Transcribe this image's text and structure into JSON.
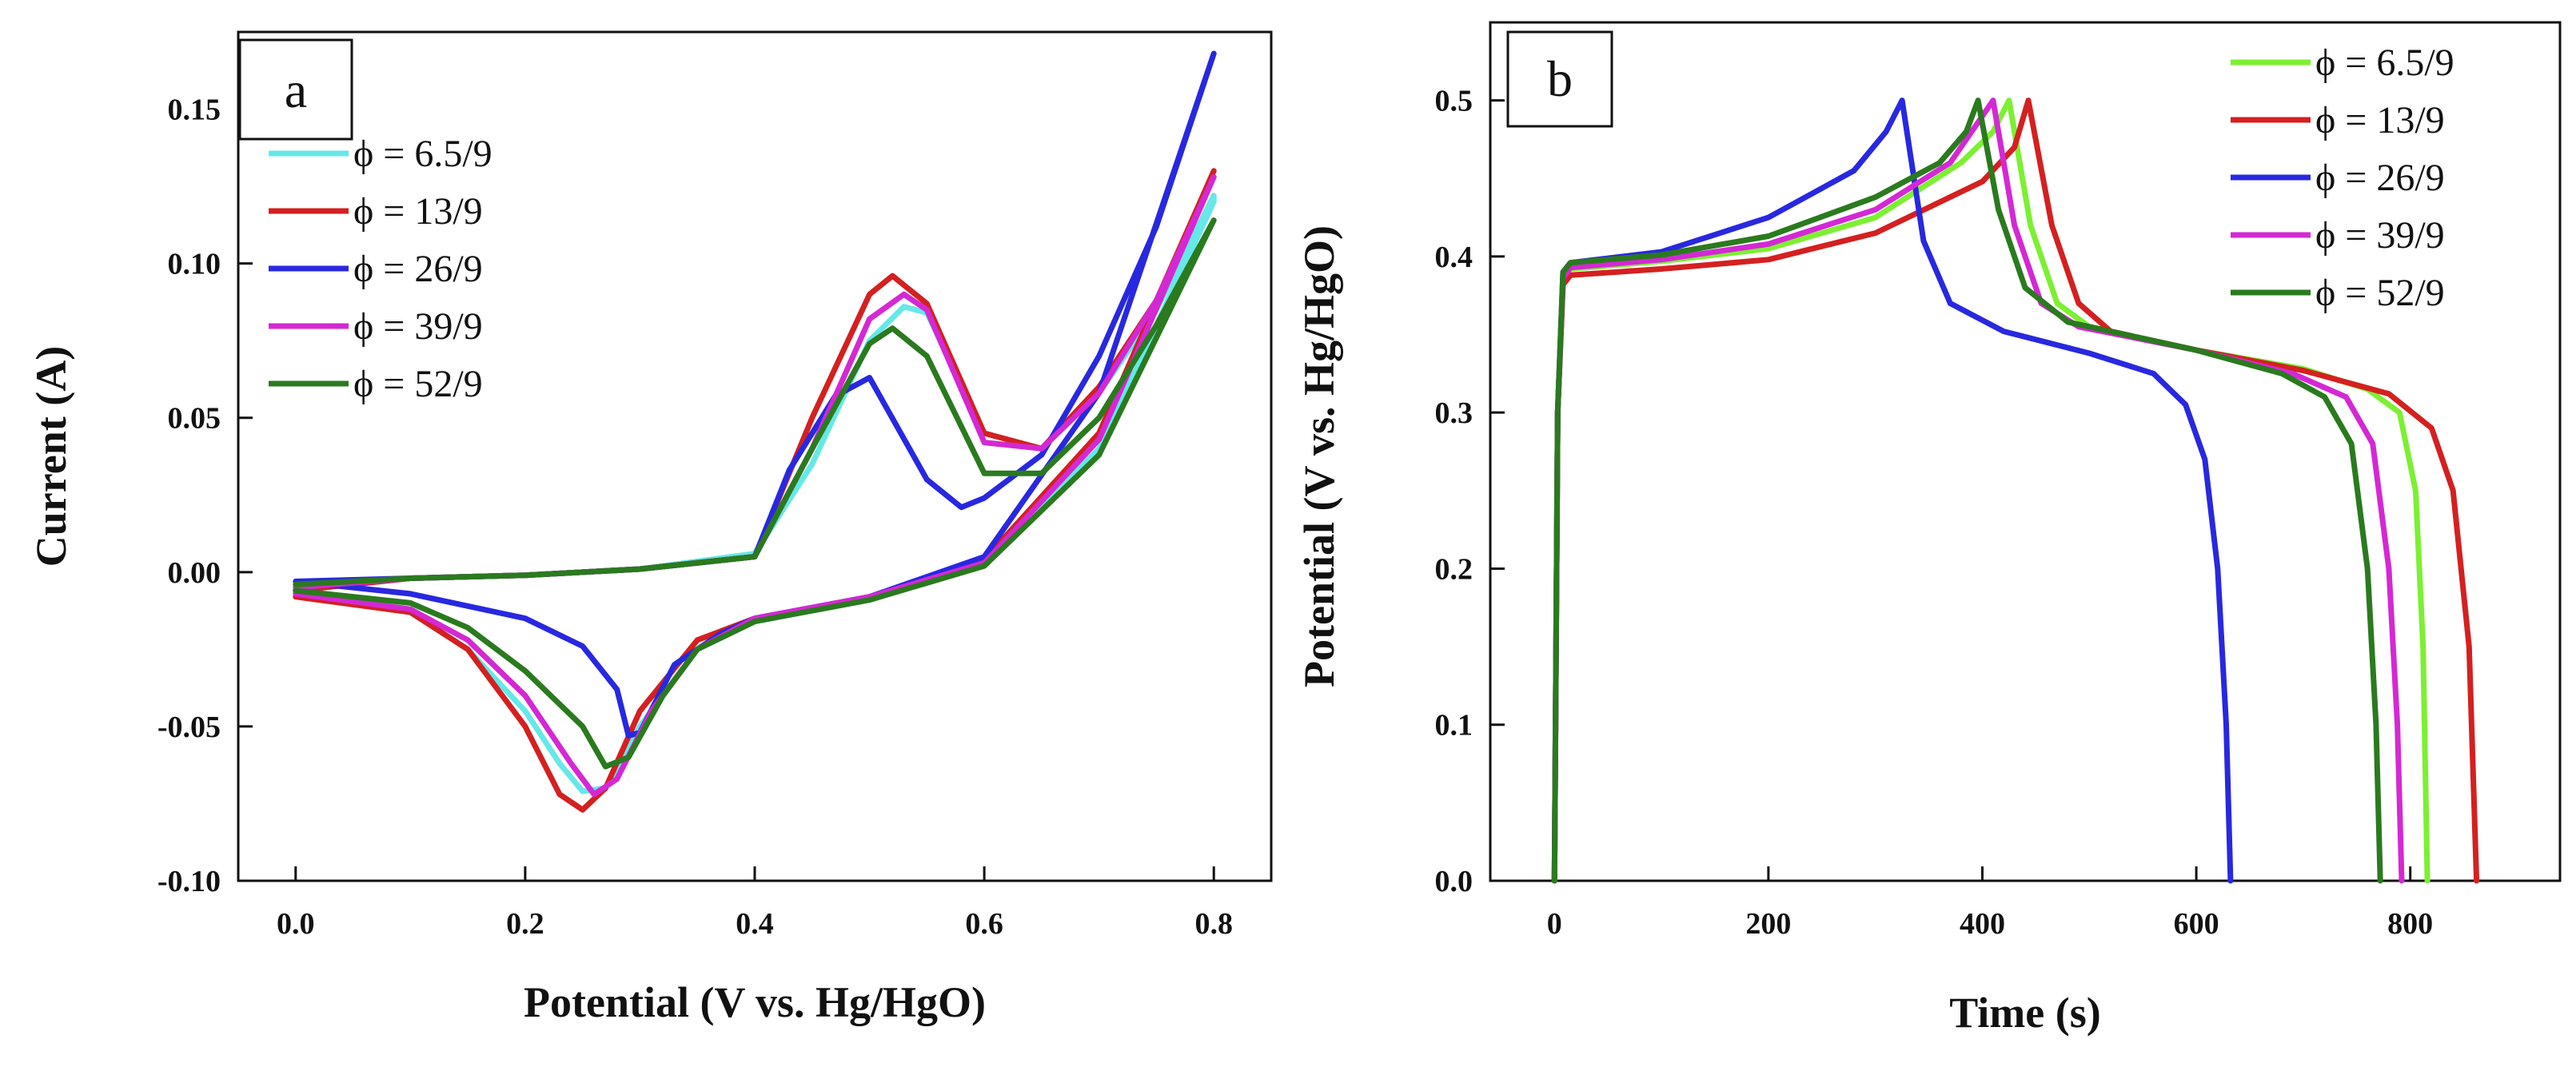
{
  "chart_data": [
    {
      "type": "line",
      "panel_label": "a",
      "xlabel": "Potential (V vs. Hg/HgO)",
      "ylabel": "Current (A)",
      "xlim": [
        -0.05,
        0.85
      ],
      "ylim": [
        -0.1,
        0.175
      ],
      "xticks": [
        0.0,
        0.2,
        0.4,
        0.6,
        0.8
      ],
      "xtick_labels": [
        "0.0",
        "0.2",
        "0.4",
        "0.6",
        "0.8"
      ],
      "yticks": [
        -0.1,
        -0.05,
        0.0,
        0.05,
        0.1,
        0.15
      ],
      "ytick_labels": [
        "-0.10",
        "-0.05",
        "0.00",
        "0.05",
        "0.10",
        "0.15"
      ],
      "legend_position": "top-left",
      "series": [
        {
          "name": "ϕ = 6.5/9",
          "color": "#66e8e8",
          "points": [
            [
              0.0,
              -0.006
            ],
            [
              0.1,
              -0.013
            ],
            [
              0.15,
              -0.025
            ],
            [
              0.2,
              -0.045
            ],
            [
              0.23,
              -0.062
            ],
            [
              0.25,
              -0.071
            ],
            [
              0.27,
              -0.07
            ],
            [
              0.3,
              -0.05
            ],
            [
              0.35,
              -0.025
            ],
            [
              0.4,
              -0.016
            ],
            [
              0.5,
              -0.009
            ],
            [
              0.6,
              0.003
            ],
            [
              0.7,
              0.04
            ],
            [
              0.8,
              0.12
            ],
            [
              0.8,
              0.122
            ],
            [
              0.75,
              0.085
            ],
            [
              0.7,
              0.058
            ],
            [
              0.65,
              0.04
            ],
            [
              0.6,
              0.045
            ],
            [
              0.55,
              0.084
            ],
            [
              0.53,
              0.086
            ],
            [
              0.5,
              0.075
            ],
            [
              0.45,
              0.035
            ],
            [
              0.4,
              0.006
            ],
            [
              0.3,
              0.001
            ],
            [
              0.2,
              -0.001
            ],
            [
              0.1,
              -0.002
            ],
            [
              0.0,
              -0.005
            ]
          ]
        },
        {
          "name": "ϕ = 13/9",
          "color": "#d42020",
          "points": [
            [
              0.0,
              -0.008
            ],
            [
              0.1,
              -0.013
            ],
            [
              0.15,
              -0.025
            ],
            [
              0.2,
              -0.05
            ],
            [
              0.23,
              -0.072
            ],
            [
              0.25,
              -0.077
            ],
            [
              0.27,
              -0.07
            ],
            [
              0.3,
              -0.045
            ],
            [
              0.35,
              -0.022
            ],
            [
              0.4,
              -0.015
            ],
            [
              0.5,
              -0.008
            ],
            [
              0.6,
              0.004
            ],
            [
              0.7,
              0.045
            ],
            [
              0.8,
              0.13
            ],
            [
              0.8,
              0.13
            ],
            [
              0.75,
              0.088
            ],
            [
              0.7,
              0.06
            ],
            [
              0.65,
              0.04
            ],
            [
              0.6,
              0.045
            ],
            [
              0.55,
              0.087
            ],
            [
              0.52,
              0.096
            ],
            [
              0.5,
              0.09
            ],
            [
              0.45,
              0.05
            ],
            [
              0.4,
              0.005
            ],
            [
              0.3,
              0.001
            ],
            [
              0.2,
              -0.001
            ],
            [
              0.1,
              -0.002
            ],
            [
              0.0,
              -0.006
            ]
          ]
        },
        {
          "name": "ϕ = 26/9",
          "color": "#2828e0",
          "points": [
            [
              0.0,
              -0.003
            ],
            [
              0.1,
              -0.007
            ],
            [
              0.2,
              -0.015
            ],
            [
              0.25,
              -0.024
            ],
            [
              0.28,
              -0.038
            ],
            [
              0.29,
              -0.053
            ],
            [
              0.3,
              -0.052
            ],
            [
              0.33,
              -0.03
            ],
            [
              0.37,
              -0.02
            ],
            [
              0.4,
              -0.015
            ],
            [
              0.5,
              -0.008
            ],
            [
              0.6,
              0.005
            ],
            [
              0.7,
              0.058
            ],
            [
              0.8,
              0.168
            ],
            [
              0.8,
              0.168
            ],
            [
              0.75,
              0.112
            ],
            [
              0.7,
              0.07
            ],
            [
              0.65,
              0.038
            ],
            [
              0.6,
              0.024
            ],
            [
              0.58,
              0.021
            ],
            [
              0.55,
              0.03
            ],
            [
              0.5,
              0.063
            ],
            [
              0.47,
              0.057
            ],
            [
              0.43,
              0.033
            ],
            [
              0.4,
              0.005
            ],
            [
              0.3,
              0.001
            ],
            [
              0.2,
              -0.001
            ],
            [
              0.1,
              -0.002
            ],
            [
              0.0,
              -0.003
            ]
          ]
        },
        {
          "name": "ϕ = 39/9",
          "color": "#d428d4",
          "points": [
            [
              0.0,
              -0.007
            ],
            [
              0.1,
              -0.012
            ],
            [
              0.15,
              -0.022
            ],
            [
              0.2,
              -0.04
            ],
            [
              0.24,
              -0.062
            ],
            [
              0.26,
              -0.072
            ],
            [
              0.28,
              -0.067
            ],
            [
              0.31,
              -0.045
            ],
            [
              0.35,
              -0.025
            ],
            [
              0.4,
              -0.015
            ],
            [
              0.5,
              -0.008
            ],
            [
              0.6,
              0.003
            ],
            [
              0.7,
              0.043
            ],
            [
              0.8,
              0.128
            ],
            [
              0.8,
              0.128
            ],
            [
              0.75,
              0.088
            ],
            [
              0.7,
              0.058
            ],
            [
              0.65,
              0.04
            ],
            [
              0.6,
              0.042
            ],
            [
              0.55,
              0.085
            ],
            [
              0.53,
              0.09
            ],
            [
              0.5,
              0.082
            ],
            [
              0.45,
              0.04
            ],
            [
              0.4,
              0.005
            ],
            [
              0.3,
              0.001
            ],
            [
              0.2,
              -0.001
            ],
            [
              0.1,
              -0.002
            ],
            [
              0.0,
              -0.005
            ]
          ]
        },
        {
          "name": "ϕ = 52/9",
          "color": "#2a7a1e",
          "points": [
            [
              0.0,
              -0.006
            ],
            [
              0.1,
              -0.01
            ],
            [
              0.15,
              -0.018
            ],
            [
              0.2,
              -0.032
            ],
            [
              0.25,
              -0.05
            ],
            [
              0.27,
              -0.063
            ],
            [
              0.29,
              -0.06
            ],
            [
              0.32,
              -0.04
            ],
            [
              0.35,
              -0.025
            ],
            [
              0.4,
              -0.016
            ],
            [
              0.5,
              -0.009
            ],
            [
              0.6,
              0.002
            ],
            [
              0.7,
              0.038
            ],
            [
              0.8,
              0.114
            ],
            [
              0.8,
              0.114
            ],
            [
              0.75,
              0.08
            ],
            [
              0.7,
              0.05
            ],
            [
              0.65,
              0.032
            ],
            [
              0.6,
              0.032
            ],
            [
              0.55,
              0.07
            ],
            [
              0.52,
              0.079
            ],
            [
              0.5,
              0.074
            ],
            [
              0.45,
              0.04
            ],
            [
              0.4,
              0.005
            ],
            [
              0.3,
              0.001
            ],
            [
              0.2,
              -0.001
            ],
            [
              0.1,
              -0.002
            ],
            [
              0.0,
              -0.004
            ]
          ]
        }
      ]
    },
    {
      "type": "line",
      "panel_label": "b",
      "xlabel": "Time (s)",
      "ylabel": "Potential (V vs. Hg/HgO)",
      "xlim": [
        -60,
        940
      ],
      "ylim": [
        0.0,
        0.55
      ],
      "xticks": [
        0,
        200,
        400,
        600,
        800
      ],
      "xtick_labels": [
        "0",
        "200",
        "400",
        "600",
        "800"
      ],
      "yticks": [
        0.0,
        0.1,
        0.2,
        0.3,
        0.4,
        0.5
      ],
      "ytick_labels": [
        "0.0",
        "0.1",
        "0.2",
        "0.3",
        "0.4",
        "0.5"
      ],
      "legend_position": "top-right",
      "series": [
        {
          "name": "ϕ = 6.5/9",
          "color": "#7cf032",
          "points": [
            [
              0,
              0.0
            ],
            [
              3,
              0.3
            ],
            [
              8,
              0.385
            ],
            [
              15,
              0.392
            ],
            [
              100,
              0.397
            ],
            [
              200,
              0.405
            ],
            [
              300,
              0.425
            ],
            [
              380,
              0.46
            ],
            [
              410,
              0.48
            ],
            [
              425,
              0.5
            ],
            [
              445,
              0.42
            ],
            [
              470,
              0.37
            ],
            [
              500,
              0.355
            ],
            [
              600,
              0.34
            ],
            [
              700,
              0.328
            ],
            [
              760,
              0.315
            ],
            [
              790,
              0.3
            ],
            [
              805,
              0.25
            ],
            [
              812,
              0.15
            ],
            [
              816,
              0.0
            ]
          ]
        },
        {
          "name": "ϕ = 13/9",
          "color": "#d42020",
          "points": [
            [
              0,
              0.0
            ],
            [
              3,
              0.3
            ],
            [
              8,
              0.382
            ],
            [
              15,
              0.388
            ],
            [
              100,
              0.392
            ],
            [
              200,
              0.398
            ],
            [
              300,
              0.415
            ],
            [
              400,
              0.448
            ],
            [
              430,
              0.47
            ],
            [
              443,
              0.5
            ],
            [
              465,
              0.42
            ],
            [
              490,
              0.37
            ],
            [
              520,
              0.352
            ],
            [
              600,
              0.34
            ],
            [
              700,
              0.327
            ],
            [
              780,
              0.312
            ],
            [
              820,
              0.29
            ],
            [
              840,
              0.25
            ],
            [
              855,
              0.15
            ],
            [
              862,
              0.0
            ]
          ]
        },
        {
          "name": "ϕ = 26/9",
          "color": "#2828e0",
          "points": [
            [
              0,
              0.0
            ],
            [
              3,
              0.3
            ],
            [
              8,
              0.39
            ],
            [
              15,
              0.396
            ],
            [
              100,
              0.403
            ],
            [
              200,
              0.425
            ],
            [
              280,
              0.455
            ],
            [
              310,
              0.48
            ],
            [
              325,
              0.5
            ],
            [
              345,
              0.41
            ],
            [
              370,
              0.37
            ],
            [
              420,
              0.352
            ],
            [
              500,
              0.338
            ],
            [
              560,
              0.325
            ],
            [
              590,
              0.305
            ],
            [
              608,
              0.27
            ],
            [
              620,
              0.2
            ],
            [
              628,
              0.1
            ],
            [
              632,
              0.0
            ]
          ]
        },
        {
          "name": "ϕ = 39/9",
          "color": "#d428d4",
          "points": [
            [
              0,
              0.0
            ],
            [
              3,
              0.3
            ],
            [
              8,
              0.386
            ],
            [
              15,
              0.393
            ],
            [
              100,
              0.398
            ],
            [
              200,
              0.408
            ],
            [
              300,
              0.43
            ],
            [
              370,
              0.46
            ],
            [
              400,
              0.49
            ],
            [
              410,
              0.5
            ],
            [
              430,
              0.42
            ],
            [
              455,
              0.37
            ],
            [
              490,
              0.355
            ],
            [
              600,
              0.34
            ],
            [
              690,
              0.325
            ],
            [
              740,
              0.31
            ],
            [
              765,
              0.28
            ],
            [
              780,
              0.2
            ],
            [
              788,
              0.1
            ],
            [
              792,
              0.0
            ]
          ]
        },
        {
          "name": "ϕ = 52/9",
          "color": "#2a7a1e",
          "points": [
            [
              0,
              0.0
            ],
            [
              3,
              0.3
            ],
            [
              8,
              0.39
            ],
            [
              15,
              0.396
            ],
            [
              100,
              0.401
            ],
            [
              200,
              0.413
            ],
            [
              300,
              0.438
            ],
            [
              360,
              0.46
            ],
            [
              385,
              0.48
            ],
            [
              396,
              0.5
            ],
            [
              415,
              0.43
            ],
            [
              440,
              0.38
            ],
            [
              480,
              0.358
            ],
            [
              600,
              0.34
            ],
            [
              680,
              0.325
            ],
            [
              720,
              0.31
            ],
            [
              745,
              0.28
            ],
            [
              760,
              0.2
            ],
            [
              768,
              0.1
            ],
            [
              772,
              0.0
            ]
          ]
        }
      ]
    }
  ]
}
